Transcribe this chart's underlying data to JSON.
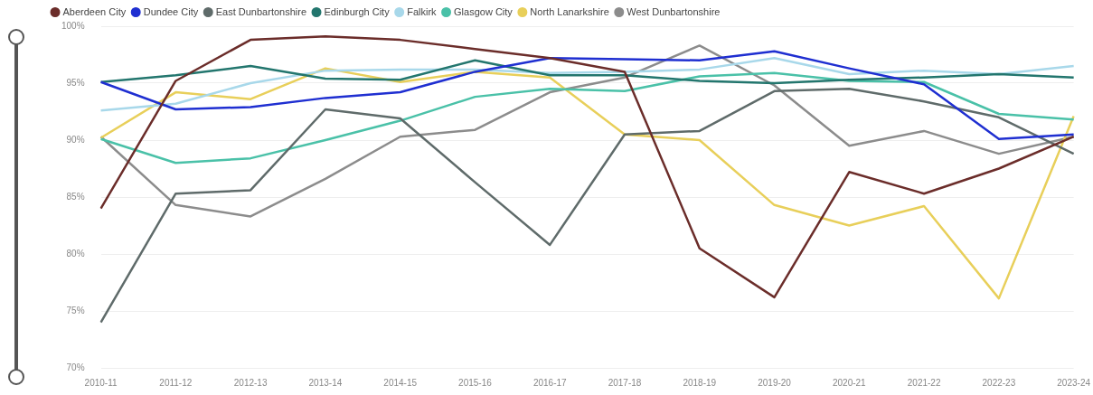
{
  "chart_data": {
    "type": "line",
    "categories": [
      "2010-11",
      "2011-12",
      "2012-13",
      "2013-14",
      "2014-15",
      "2015-16",
      "2016-17",
      "2017-18",
      "2018-19",
      "2019-20",
      "2020-21",
      "2021-22",
      "2022-23",
      "2023-24"
    ],
    "series": [
      {
        "name": "Aberdeen City",
        "color": "#6b2d2a",
        "values": [
          84,
          95.2,
          98.8,
          99.1,
          98.8,
          98,
          97.2,
          96,
          80.5,
          76.2,
          87.2,
          85.3,
          87.5,
          90.3
        ]
      },
      {
        "name": "Dundee City",
        "color": "#1f2fd1",
        "values": [
          95.1,
          92.7,
          92.9,
          93.7,
          94.2,
          96,
          97.2,
          97.1,
          97,
          97.8,
          96.3,
          94.9,
          90.1,
          90.5
        ]
      },
      {
        "name": "East Dunbartonshire",
        "color": "#5f6b6a",
        "values": [
          74,
          85.3,
          85.6,
          92.7,
          91.9,
          86.3,
          80.8,
          90.5,
          90.8,
          94.3,
          94.5,
          93.4,
          92,
          88.8
        ]
      },
      {
        "name": "Edinburgh City",
        "color": "#23766e",
        "values": [
          95.1,
          95.7,
          96.5,
          95.4,
          95.3,
          97,
          95.7,
          95.7,
          95.2,
          95,
          95.3,
          95.5,
          95.8,
          95.5
        ]
      },
      {
        "name": "Falkirk",
        "color": "#a8d8ea",
        "values": [
          92.6,
          93.2,
          95,
          96.1,
          96.2,
          96.2,
          95.9,
          96,
          96.2,
          97.2,
          95.8,
          96.1,
          95.8,
          96.5
        ]
      },
      {
        "name": "Glasgow City",
        "color": "#4ac1a8",
        "values": [
          90.1,
          88,
          88.4,
          90,
          91.7,
          93.8,
          94.5,
          94.3,
          95.6,
          95.9,
          95.2,
          95.1,
          92.3,
          91.8
        ]
      },
      {
        "name": "North Lanarkshire",
        "color": "#e8cf5a",
        "values": [
          90.2,
          94.2,
          93.6,
          96.3,
          95.1,
          96,
          95.5,
          90.5,
          90,
          84.3,
          82.5,
          84.2,
          76.1,
          92.1
        ]
      },
      {
        "name": "West Dunbartonshire",
        "color": "#8c8c8c",
        "values": [
          90.3,
          84.3,
          83.3,
          86.6,
          90.3,
          90.9,
          94.2,
          95.5,
          98.3,
          94.8,
          89.5,
          90.8,
          88.8,
          90.3
        ]
      }
    ],
    "ylim": [
      70,
      100
    ],
    "yticks": [
      {
        "value": 70,
        "label": "70%"
      },
      {
        "value": 75,
        "label": "75%"
      },
      {
        "value": 80,
        "label": "80%"
      },
      {
        "value": 85,
        "label": "85%"
      },
      {
        "value": 90,
        "label": "90%"
      },
      {
        "value": 95,
        "label": "95%"
      },
      {
        "value": 100,
        "label": "100%"
      }
    ],
    "grid": "y",
    "legend": "top left",
    "marker": "none",
    "line_style": "solid"
  }
}
